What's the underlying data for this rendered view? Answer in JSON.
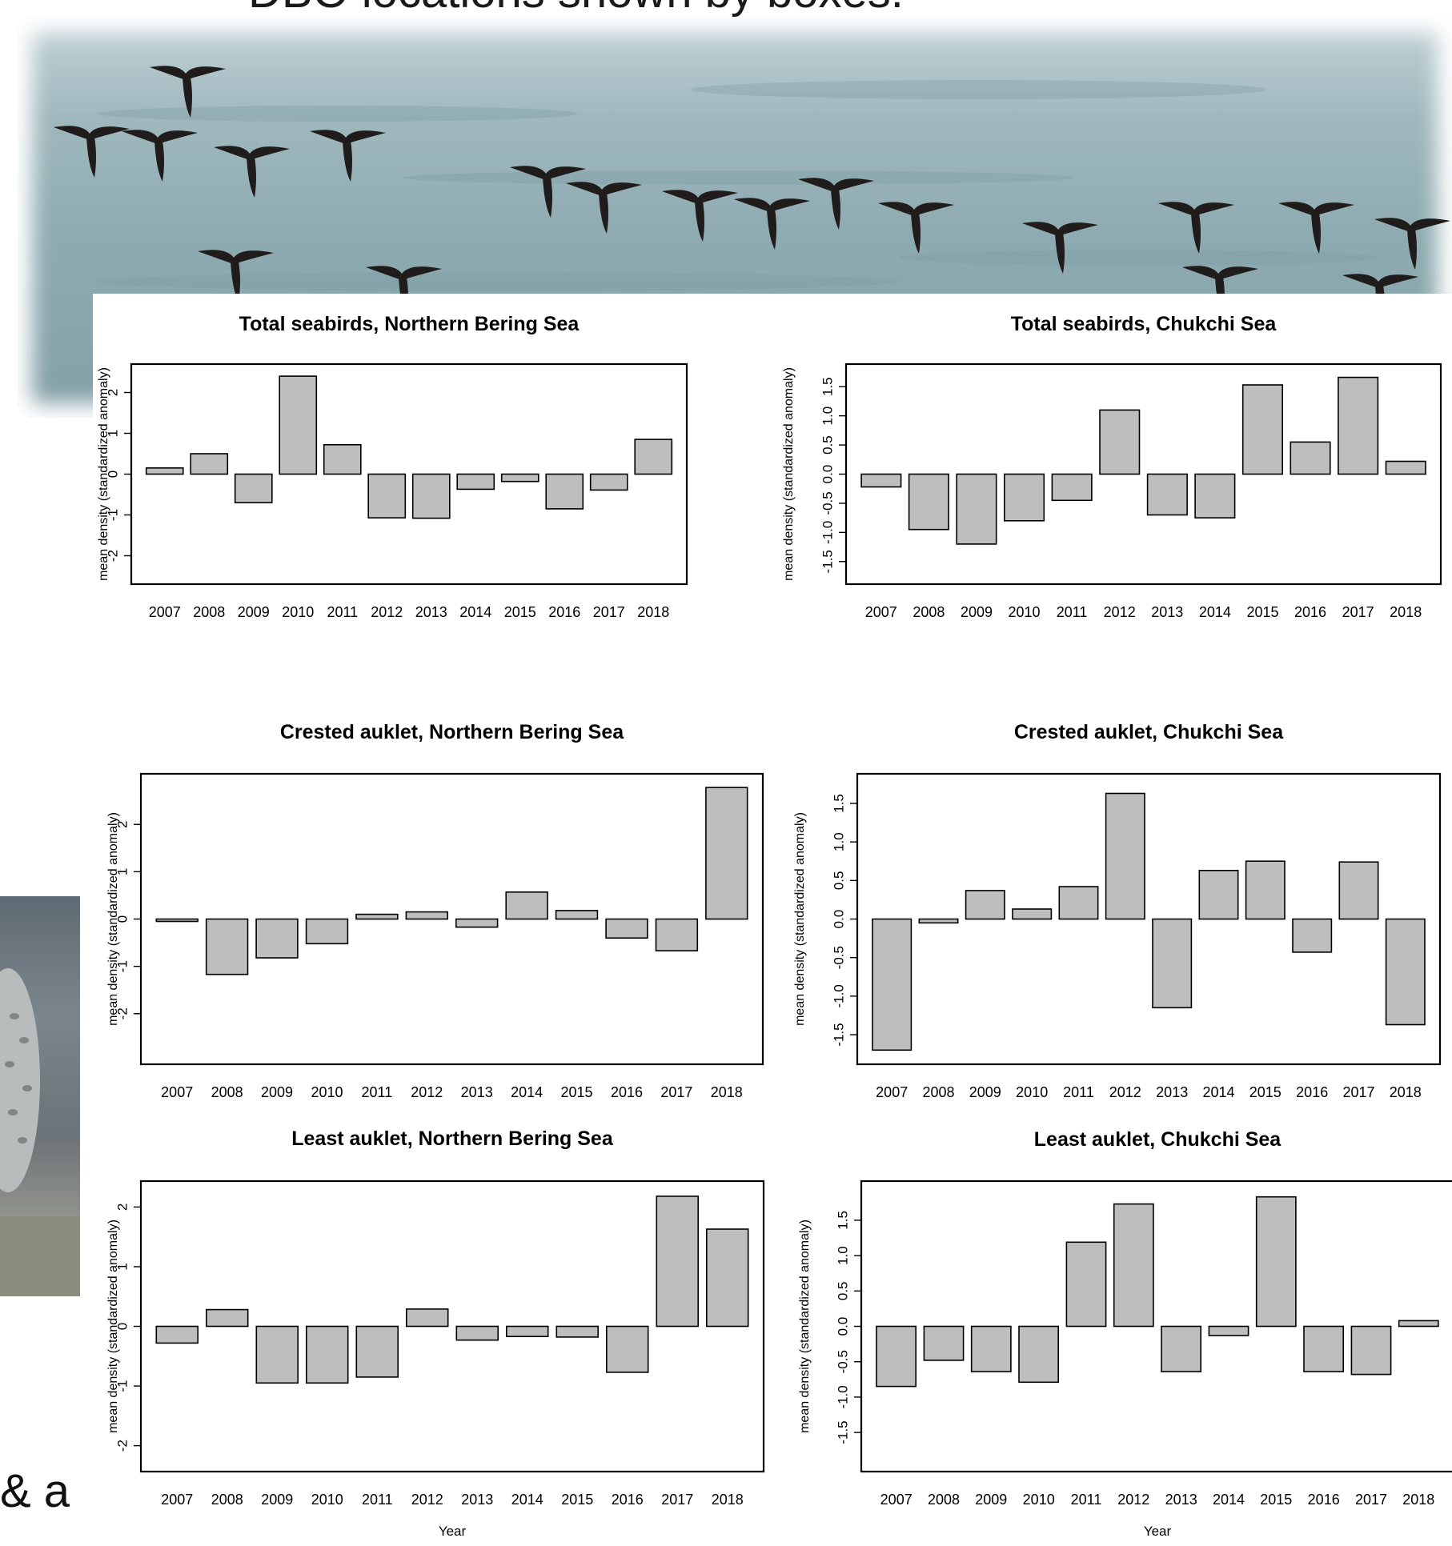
{
  "slide": {
    "title_fragment": "DBO locations shown by boxes.",
    "side_text_fragment": "& a"
  },
  "images": {
    "top_photo": "seabirds-flying-over-water-photo",
    "left_photo": "owl-photo"
  },
  "chart_data": [
    {
      "type": "bar",
      "title": "Total seabirds, Northern Bering Sea",
      "ylabel": "mean density (standardized anomaly)",
      "xlabel": "",
      "categories": [
        "2007",
        "2008",
        "2009",
        "2010",
        "2011",
        "2012",
        "2013",
        "2014",
        "2015",
        "2016",
        "2017",
        "2018"
      ],
      "values": [
        0.15,
        0.5,
        -0.7,
        2.4,
        0.72,
        -1.07,
        -1.08,
        -0.37,
        -0.18,
        -0.85,
        -0.39,
        0.85
      ],
      "ylim": [
        -2.5,
        2.5
      ],
      "yticks": [
        -2,
        -1,
        0,
        1,
        2
      ],
      "ytick_labels": [
        "-2",
        "-1",
        "0",
        "1",
        "2"
      ],
      "bar_color": "#bebebe"
    },
    {
      "type": "bar",
      "title": "Total seabirds, Chukchi Sea",
      "ylabel": "mean density (standardized anomaly)",
      "xlabel": "",
      "categories": [
        "2007",
        "2008",
        "2009",
        "2010",
        "2011",
        "2012",
        "2013",
        "2014",
        "2015",
        "2016",
        "2017",
        "2018"
      ],
      "values": [
        -0.22,
        -0.95,
        -1.2,
        -0.8,
        -0.45,
        1.1,
        -0.7,
        -0.75,
        1.53,
        0.55,
        1.66,
        0.22
      ],
      "ylim": [
        -1.75,
        1.75
      ],
      "yticks": [
        -1.5,
        -1.0,
        -0.5,
        0.0,
        0.5,
        1.0,
        1.5
      ],
      "ytick_labels": [
        "-1.5",
        "-1.0",
        "-0.5",
        "0.0",
        "0.5",
        "1.0",
        "1.5"
      ],
      "bar_color": "#bebebe"
    },
    {
      "type": "bar",
      "title": "Crested auklet, Northern Bering Sea",
      "ylabel": "mean density (standardized anomaly)",
      "xlabel": "",
      "categories": [
        "2007",
        "2008",
        "2009",
        "2010",
        "2011",
        "2012",
        "2013",
        "2014",
        "2015",
        "2016",
        "2017",
        "2018"
      ],
      "values": [
        -0.05,
        -1.17,
        -0.82,
        -0.52,
        0.1,
        0.15,
        -0.17,
        0.57,
        0.18,
        -0.4,
        -0.67,
        2.78
      ],
      "ylim": [
        -2.9,
        2.9
      ],
      "yticks": [
        -2,
        -1,
        0,
        1,
        2
      ],
      "ytick_labels": [
        "-2",
        "-1",
        "0",
        "1",
        "2"
      ],
      "bar_color": "#bebebe"
    },
    {
      "type": "bar",
      "title": "Crested auklet, Chukchi Sea",
      "ylabel": "mean density (standardized anomaly)",
      "xlabel": "",
      "categories": [
        "2007",
        "2008",
        "2009",
        "2010",
        "2011",
        "2012",
        "2013",
        "2014",
        "2015",
        "2016",
        "2017",
        "2018"
      ],
      "values": [
        -1.7,
        -0.05,
        0.37,
        0.13,
        0.42,
        1.63,
        -1.15,
        0.63,
        0.75,
        -0.43,
        0.74,
        -1.37
      ],
      "ylim": [
        -1.78,
        1.78
      ],
      "yticks": [
        -1.5,
        -1.0,
        -0.5,
        0.0,
        0.5,
        1.0,
        1.5
      ],
      "ytick_labels": [
        "-1.5",
        "-1.0",
        "-0.5",
        "0.0",
        "0.5",
        "1.0",
        "1.5"
      ],
      "bar_color": "#bebebe"
    },
    {
      "type": "bar",
      "title": "Least auklet, Northern Bering Sea",
      "ylabel": "mean density (standardized anomaly)",
      "xlabel": "Year",
      "categories": [
        "2007",
        "2008",
        "2009",
        "2010",
        "2011",
        "2012",
        "2013",
        "2014",
        "2015",
        "2016",
        "2017",
        "2018"
      ],
      "values": [
        -0.28,
        0.28,
        -0.95,
        -0.95,
        -0.85,
        0.29,
        -0.23,
        -0.17,
        -0.18,
        -0.77,
        2.18,
        1.63
      ],
      "ylim": [
        -2.3,
        2.3
      ],
      "yticks": [
        -2,
        -1,
        0,
        1,
        2
      ],
      "ytick_labels": [
        "-2",
        "-1",
        "0",
        "1",
        "2"
      ],
      "bar_color": "#bebebe"
    },
    {
      "type": "bar",
      "title": "Least auklet, Chukchi Sea",
      "ylabel": "mean density (standardized anomaly)",
      "xlabel": "Year",
      "categories": [
        "2007",
        "2008",
        "2009",
        "2010",
        "2011",
        "2012",
        "2013",
        "2014",
        "2015",
        "2016",
        "2017",
        "2018"
      ],
      "values": [
        -0.85,
        -0.48,
        -0.64,
        -0.79,
        1.19,
        1.73,
        -0.64,
        -0.13,
        1.83,
        -0.64,
        -0.68,
        0.08
      ],
      "ylim": [
        -1.94,
        1.94
      ],
      "yticks": [
        -1.5,
        -1.0,
        -0.5,
        0.0,
        0.5,
        1.0,
        1.5
      ],
      "ytick_labels": [
        "-1.5",
        "-1.0",
        "-0.5",
        "0.0",
        "0.5",
        "1.0",
        "1.5"
      ],
      "bar_color": "#bebebe"
    }
  ]
}
